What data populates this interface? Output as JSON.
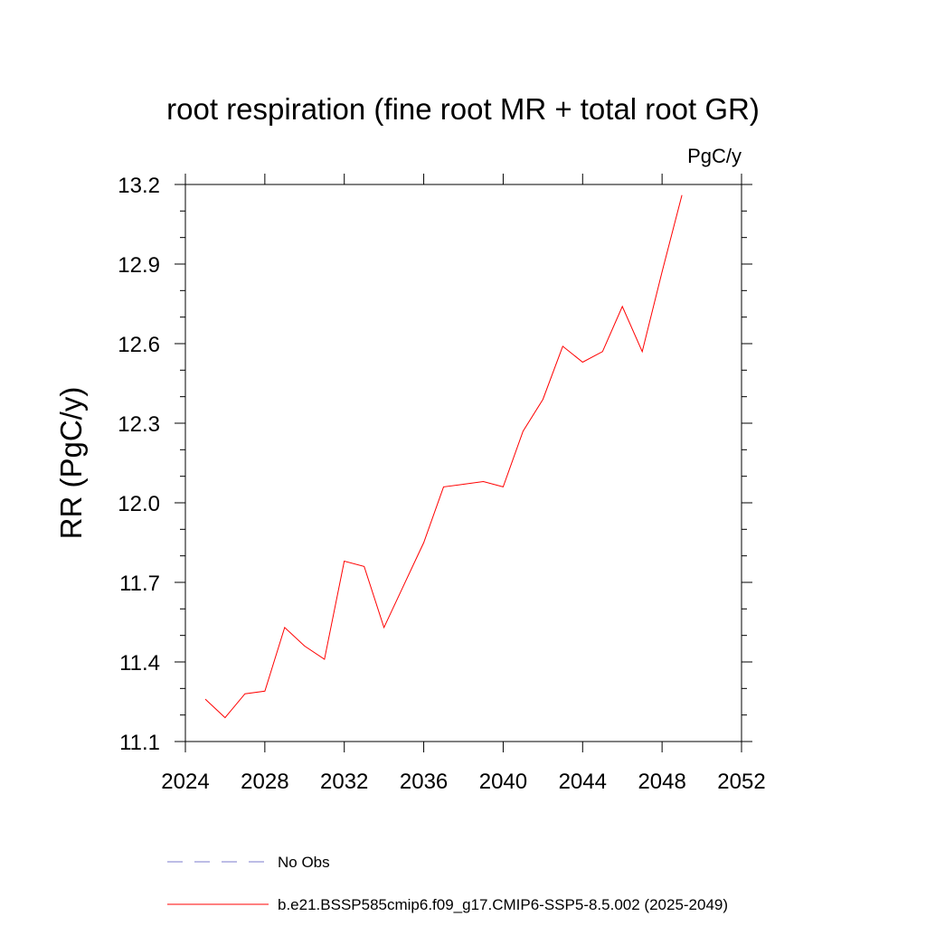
{
  "chart_data": {
    "type": "line",
    "title": "root respiration (fine root MR + total root GR)",
    "units_label": "PgC/y",
    "ylabel": "RR  (PgC/y)",
    "xlabel": "",
    "xlim": [
      2024,
      2052
    ],
    "ylim": [
      11.1,
      13.2
    ],
    "x_ticks": [
      2024,
      2028,
      2032,
      2036,
      2040,
      2044,
      2048,
      2052
    ],
    "x_tick_labels": [
      "2024",
      "2028",
      "2032",
      "2036",
      "2040",
      "2044",
      "2048",
      "2052"
    ],
    "y_ticks": [
      11.1,
      11.4,
      11.7,
      12.0,
      12.3,
      12.6,
      12.9,
      13.2
    ],
    "y_tick_labels": [
      "11.1",
      "11.4",
      "11.7",
      "12.0",
      "12.3",
      "12.6",
      "12.9",
      "13.2"
    ],
    "series": [
      {
        "name": "b.e21.BSSP585cmip6.f09_g17.CMIP6-SSP5-8.5.002 (2025-2049)",
        "color": "#ff0000",
        "style": "solid",
        "x": [
          2025,
          2026,
          2027,
          2028,
          2029,
          2030,
          2031,
          2032,
          2033,
          2034,
          2035,
          2036,
          2037,
          2038,
          2039,
          2040,
          2041,
          2042,
          2043,
          2044,
          2045,
          2046,
          2047,
          2048,
          2049
        ],
        "y": [
          11.26,
          11.19,
          11.28,
          11.29,
          11.53,
          11.46,
          11.41,
          11.78,
          11.76,
          11.53,
          11.69,
          11.85,
          12.06,
          12.07,
          12.08,
          12.06,
          12.27,
          12.39,
          12.59,
          12.53,
          12.57,
          12.74,
          12.57,
          12.87,
          13.16
        ]
      }
    ],
    "legend": [
      {
        "label": "No Obs",
        "color": "#7b7bcc",
        "style": "dashed"
      },
      {
        "label": "b.e21.BSSP585cmip6.f09_g17.CMIP6-SSP5-8.5.002 (2025-2049)",
        "color": "#ff0000",
        "style": "solid"
      }
    ],
    "legend_placement": "bottom"
  }
}
